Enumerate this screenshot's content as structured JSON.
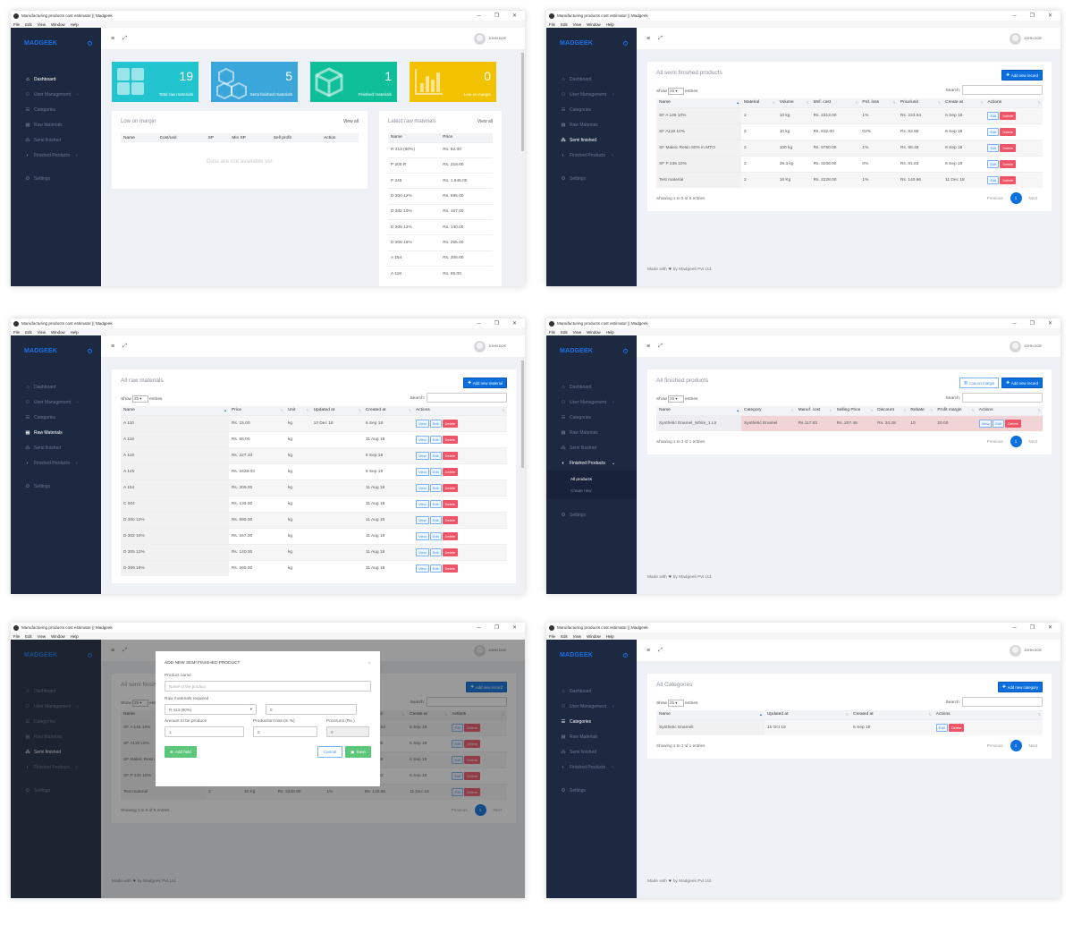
{
  "app": {
    "title": "Manufacturing products cost estimator || Madgeek",
    "menu": [
      "File",
      "Edit",
      "View",
      "Window",
      "Help"
    ],
    "window_controls": {
      "minimize": "─",
      "maximize": "❐",
      "close": "✕"
    },
    "brand": "MADGEEK",
    "user": "JOHN DOE",
    "nav": [
      {
        "label": "Dashboard",
        "icon": "home-icon",
        "glyph": "⌂"
      },
      {
        "label": "User Management",
        "icon": "users-icon",
        "glyph": "⚇",
        "chevron": "‹"
      },
      {
        "label": "Categories",
        "icon": "list-icon",
        "glyph": "☰"
      },
      {
        "label": "Raw Materials",
        "icon": "grid-icon",
        "glyph": "▦"
      },
      {
        "label": "Semi finished",
        "icon": "cubes-icon",
        "glyph": "⁂"
      },
      {
        "label": "Finished Products",
        "icon": "cube-icon",
        "glyph": "◐",
        "chevron": "‹"
      },
      {
        "label": "Settings",
        "icon": "gear-icon",
        "glyph": "⚙"
      }
    ],
    "table_controls": {
      "show": "Show",
      "length": "25",
      "entries": "entries",
      "search": "Search:"
    },
    "pagination": {
      "previous": "Previous",
      "page": "1",
      "next": "Next"
    },
    "footer": {
      "made_with": "Made with",
      "by": "by Madgeek Pvt Ltd."
    },
    "colors": {
      "sidebar": "#1d2841",
      "brand": "#1a73e8",
      "primary": "#0b6fe0",
      "danger": "#ef5568",
      "success": "#5cc67a",
      "background": "#eef1f5"
    }
  },
  "windows": [
    {
      "type": "dashboard",
      "active_nav": 0,
      "stats": [
        {
          "value": "19",
          "label": "Total raw materials",
          "color": "#22c4cf",
          "icon": "grid-icon"
        },
        {
          "value": "5",
          "label": "Semi finished materials",
          "color": "#3aa6d9",
          "icon": "cubes-icon"
        },
        {
          "value": "1",
          "label": "Finished materials",
          "color": "#0fbf99",
          "icon": "cube-icon"
        },
        {
          "value": "0",
          "label": "Low on margin",
          "color": "#f2c200",
          "icon": "bar-chart-icon"
        }
      ],
      "low_margin": {
        "title": "Low on margin",
        "view_all": "View all",
        "columns": [
          "Name",
          "Cost/unit",
          "SP",
          "Min SP",
          "Sell profit",
          "Action"
        ],
        "empty": "Data are not available yet"
      },
      "latest_raw": {
        "title": "Latest raw materials",
        "view_all": "View all",
        "columns": [
          "Name",
          "Price"
        ],
        "rows": [
          [
            "R 413 (60%)",
            "Rs. 92.00"
          ],
          [
            "P 200 R",
            "Rs. 218.00"
          ],
          [
            "P 245",
            "Rs. 1,945.00"
          ],
          [
            "D 300 12%",
            "Rs. 595.00"
          ],
          [
            "D 302 10%",
            "Rs. 167.00"
          ],
          [
            "D 305 12%",
            "Rs. 140.00"
          ],
          [
            "D 306 18%",
            "Rs. 265.00"
          ],
          [
            "A 154",
            "Rs. 306.00"
          ],
          [
            "A 118",
            "Rs. 65.00"
          ]
        ]
      }
    },
    {
      "type": "table",
      "active_nav": 4,
      "footer": true,
      "table": {
        "title": "All semi finished products",
        "buttons": [
          {
            "label": "Add new record",
            "style": "primary",
            "icon": "plus-icon"
          }
        ],
        "columns": [
          "Name",
          "Material",
          "Volume",
          "Mnf. cost",
          "Prd. loss",
          "Price/unit",
          "Create at",
          "Actions"
        ],
        "rows": [
          [
            "SF A 145 10%",
            "2",
            "10 kg",
            "Rs. 2213.00",
            "1%",
            "Rs. 223.54",
            "6 Sep 18"
          ],
          [
            "SF A119 10%",
            "2",
            "10 kg",
            "Rs. 812.00",
            "02%",
            "Rs. 82.86",
            "6 Sep 18"
          ],
          [
            "SF Maleic Resin 50% in MTO",
            "2",
            "100 kg",
            "Rs. 9750.00",
            "1%",
            "Rs. 98.48",
            "6 Sep 18"
          ],
          [
            "SF P 235 10%",
            "2",
            "39.3 kg",
            "Rs. 3208.00",
            "0%",
            "Rs. 81.63",
            "6 Sep 18"
          ],
          [
            "Test material",
            "2",
            "16 Kg",
            "Rs. 2228.00",
            "1%",
            "Rs. 140.66",
            "11 Dec 18"
          ]
        ],
        "actions": [
          "Edit",
          "Delete"
        ],
        "info": "Showing 1 to 5 of 5 entries"
      }
    },
    {
      "type": "table",
      "active_nav": 3,
      "footer": false,
      "table": {
        "title": "All raw materials",
        "buttons": [
          {
            "label": "Add new material",
            "style": "primary",
            "icon": "plus-icon"
          }
        ],
        "columns": [
          "Name",
          "Price",
          "Unit",
          "Updated at",
          "Created at",
          "Actions"
        ],
        "rows": [
          [
            "A 110",
            "Rs. 15.00",
            "kg",
            "10 Dec 18",
            "6 Sep 18"
          ],
          [
            "A 118",
            "Rs. 65.00",
            "kg",
            "",
            "11 Aug 18"
          ],
          [
            "A 119",
            "Rs. 227.33",
            "kg",
            "",
            "6 Sep 18"
          ],
          [
            "A 145",
            "Rs. 1628.03",
            "kg",
            "",
            "6 Sep 18"
          ],
          [
            "A 154",
            "Rs. 306.00",
            "kg",
            "",
            "11 Aug 18"
          ],
          [
            "C 004",
            "Rs. 135.00",
            "kg",
            "",
            "11 Aug 18"
          ],
          [
            "D 300 12%",
            "Rs. 595.00",
            "kg",
            "",
            "11 Aug 18"
          ],
          [
            "D 302 10%",
            "Rs. 167.00",
            "kg",
            "",
            "11 Aug 18"
          ],
          [
            "D 305 12%",
            "Rs. 140.00",
            "kg",
            "",
            "11 Aug 18"
          ],
          [
            "D 306 18%",
            "Rs. 265.00",
            "kg",
            "",
            "11 Aug 18"
          ]
        ],
        "actions": [
          "View",
          "Edit",
          "Delete"
        ]
      }
    },
    {
      "type": "table",
      "active_nav": 5,
      "nav_expanded": true,
      "subnav": [
        {
          "label": "All products",
          "active": true
        },
        {
          "label": "Create new",
          "active": false
        }
      ],
      "footer": true,
      "table": {
        "title": "All finished products",
        "buttons": [
          {
            "label": "Low on margin",
            "style": "outline",
            "icon": "bar-chart-icon"
          },
          {
            "label": "Add new record",
            "style": "primary",
            "icon": "plus-icon"
          }
        ],
        "columns": [
          "Name",
          "Category",
          "Manuf. cost",
          "Selling Price",
          "Discount",
          "Rebate",
          "Profit margin",
          "Actions"
        ],
        "rows": [
          [
            "Synthetic Enamel_White_1 Ltr",
            "Synthetic Enamel",
            "Rs.117.83",
            "Rs. 207.46",
            "Rs. 20.28",
            "10",
            "20.00"
          ]
        ],
        "highlighted_row": 0,
        "actions": [
          "View",
          "Edit",
          "Delete"
        ],
        "info": "Showing 1 to 1 of 1 entries"
      }
    },
    {
      "type": "modal",
      "active_nav": 4,
      "footer": true,
      "table": {
        "title": "All semi finished products",
        "buttons": [
          {
            "label": "Add new record",
            "style": "primary",
            "icon": "plus-icon"
          }
        ],
        "columns": [
          "Name",
          "Material",
          "Volume",
          "Mnf. cost",
          "Prd. loss",
          "Price/unit",
          "Create at",
          "Actions"
        ],
        "rows": [
          [
            "SF A 145 10%",
            "2",
            "10 kg",
            "Rs. 2213.00",
            "1%",
            "Rs. 223.54",
            "6 Sep 18"
          ],
          [
            "SF A119 10%",
            "2",
            "10 kg",
            "Rs. 812.00",
            "02%",
            "Rs. 82.86",
            "6 Sep 18"
          ],
          [
            "SF Maleic Resin 50% in MTO",
            "2",
            "100 kg",
            "Rs. 9750.00",
            "1%",
            "Rs. 98.48",
            "6 Sep 18"
          ],
          [
            "SF P 235 10%",
            "2",
            "39.3 kg",
            "Rs. 3208.00",
            "0%",
            "Rs. 81.63",
            "6 Sep 18"
          ],
          [
            "Test material",
            "2",
            "16 Kg",
            "Rs. 2228.00",
            "1%",
            "Rs. 140.66",
            "11 Dec 18"
          ]
        ],
        "actions": [
          "Edit",
          "Delete"
        ],
        "info": "Showing 1 to 5 of 5 entries"
      },
      "modal": {
        "title": "ADD NEW SEMI FINISHED PRODUCT",
        "close": "×",
        "product_name_label": "Product name",
        "product_name_placeholder": "Name of the product",
        "raw_label": "Raw materials required",
        "raw_select": "R 413 (60%)",
        "raw_qty": "0",
        "amount_label": "Amount to be produce",
        "amount_value": "1",
        "loss_label": "Production loss (in %)",
        "loss_value": "0",
        "price_label": "Price/unit (Rs.)",
        "price_value": "0",
        "add_field": "Add field",
        "cancel": "Cancel",
        "save": "Save"
      }
    },
    {
      "type": "table",
      "active_nav": 2,
      "footer": true,
      "table": {
        "title": "All Categories",
        "buttons": [
          {
            "label": "Add new category",
            "style": "primary",
            "icon": "plus-icon"
          }
        ],
        "columns": [
          "Name",
          "Updated at",
          "Created at",
          "Actions"
        ],
        "rows": [
          [
            "Synthetic Enamell",
            "15 Oct 18",
            "6 Sep 18"
          ]
        ],
        "actions": [
          "Edit",
          "Delete"
        ],
        "info": "Showing 1 to 1 of 1 entries"
      }
    }
  ]
}
